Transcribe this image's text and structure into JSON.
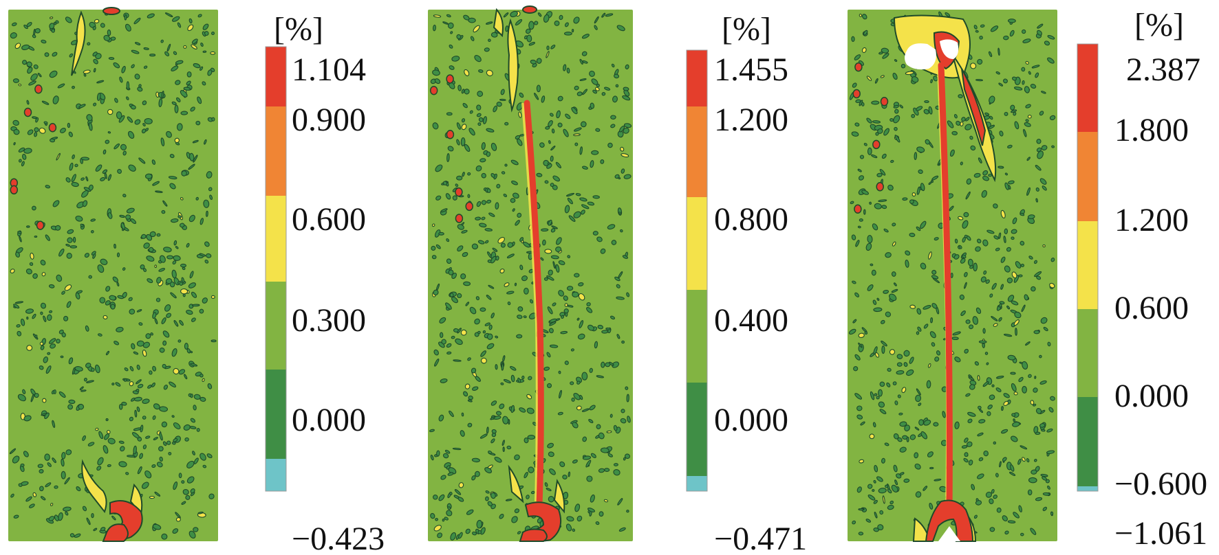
{
  "chart_data": [
    {
      "type": "heatmap",
      "field": "strain contour map, stage 1",
      "unit": "[%]",
      "max": 1.104,
      "min": -0.423,
      "tick_labels": [
        "1.104",
        "0.900",
        "0.600",
        "0.300",
        "0.000",
        "−0.423"
      ],
      "band_boundaries": [
        1.104,
        0.9,
        0.6,
        0.3,
        0.0,
        -0.3,
        -0.423
      ],
      "crack": "none"
    },
    {
      "type": "heatmap",
      "field": "strain contour map, stage 2",
      "unit": "[%]",
      "max": 1.455,
      "min": -0.471,
      "tick_labels": [
        "1.455",
        "1.200",
        "0.800",
        "0.400",
        "0.000",
        "−0.471"
      ],
      "band_boundaries": [
        1.455,
        1.2,
        0.8,
        0.4,
        0.0,
        -0.4,
        -0.471
      ],
      "crack": "vertical"
    },
    {
      "type": "heatmap",
      "field": "strain contour map, stage 3",
      "unit": "[%]",
      "max": 2.387,
      "min": -1.061,
      "tick_labels": [
        "2.387",
        "1.800",
        "1.200",
        "0.600",
        "0.000",
        "−0.600",
        "−1.061"
      ],
      "band_boundaries": [
        2.387,
        1.8,
        1.2,
        0.6,
        0.0,
        -0.6,
        -1.061
      ],
      "crack": "vertical-with-spalling"
    }
  ],
  "colors": {
    "red": "#e43e2c",
    "orange": "#f08534",
    "yellow": "#f4e24a",
    "light_green": "#82b442",
    "dark_green": "#3f8e45",
    "cyan": "#6ec4c8",
    "spot_edge": "#1e4a2a"
  }
}
